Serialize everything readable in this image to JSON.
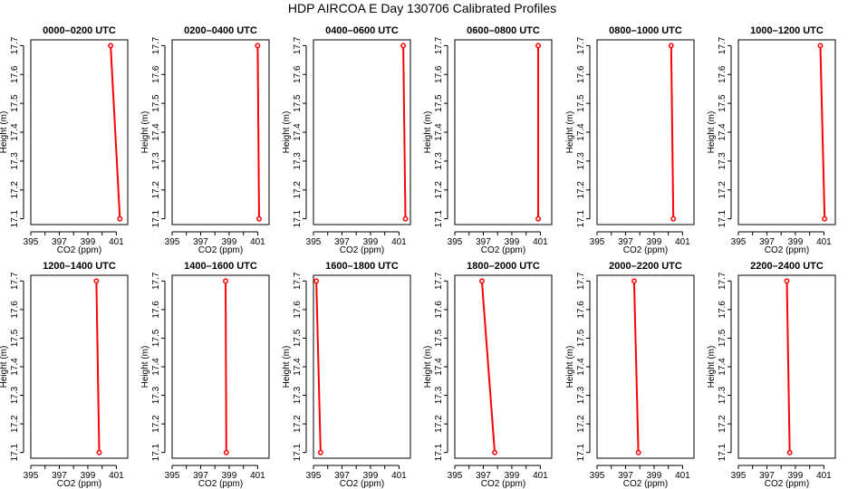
{
  "title": "HDP AIRCOA E  Day 130706  Calibrated Profiles",
  "colors": {
    "series": "#ff0000",
    "axis": "#000000",
    "background": "#ffffff"
  },
  "chart_data": [
    {
      "type": "line",
      "title": "0000–0200 UTC",
      "xlabel": "CO2 (ppm)",
      "ylabel": "Height (m)",
      "xlim": [
        395,
        401.8
      ],
      "ylim": [
        17.08,
        17.72
      ],
      "xticks": [
        395,
        397,
        399,
        401
      ],
      "yticks": [
        17.1,
        17.2,
        17.3,
        17.4,
        17.5,
        17.6,
        17.7
      ],
      "x": [
        400.6,
        401.25
      ],
      "y": [
        17.7,
        17.1
      ]
    },
    {
      "type": "line",
      "title": "0200–0400 UTC",
      "xlabel": "CO2 (ppm)",
      "ylabel": "Height (m)",
      "xlim": [
        395,
        401.8
      ],
      "ylim": [
        17.08,
        17.72
      ],
      "xticks": [
        395,
        397,
        399,
        401
      ],
      "yticks": [
        17.1,
        17.2,
        17.3,
        17.4,
        17.5,
        17.6,
        17.7
      ],
      "x": [
        401.0,
        401.1
      ],
      "y": [
        17.7,
        17.1
      ]
    },
    {
      "type": "line",
      "title": "0400–0600 UTC",
      "xlabel": "CO2 (ppm)",
      "ylabel": "Height (m)",
      "xlim": [
        395,
        401.8
      ],
      "ylim": [
        17.08,
        17.72
      ],
      "xticks": [
        395,
        397,
        399,
        401
      ],
      "yticks": [
        17.1,
        17.2,
        17.3,
        17.4,
        17.5,
        17.6,
        17.7
      ],
      "x": [
        401.3,
        401.45
      ],
      "y": [
        17.7,
        17.1
      ]
    },
    {
      "type": "line",
      "title": "0600–0800 UTC",
      "xlabel": "CO2 (ppm)",
      "ylabel": "Height (m)",
      "xlim": [
        395,
        401.8
      ],
      "ylim": [
        17.08,
        17.72
      ],
      "xticks": [
        395,
        397,
        399,
        401
      ],
      "yticks": [
        17.1,
        17.2,
        17.3,
        17.4,
        17.5,
        17.6,
        17.7
      ],
      "x": [
        400.85,
        400.85
      ],
      "y": [
        17.7,
        17.1
      ]
    },
    {
      "type": "line",
      "title": "0800–1000 UTC",
      "xlabel": "CO2 (ppm)",
      "ylabel": "Height (m)",
      "xlim": [
        395,
        401.8
      ],
      "ylim": [
        17.08,
        17.72
      ],
      "xticks": [
        395,
        397,
        399,
        401
      ],
      "yticks": [
        17.1,
        17.2,
        17.3,
        17.4,
        17.5,
        17.6,
        17.7
      ],
      "x": [
        400.2,
        400.35
      ],
      "y": [
        17.7,
        17.1
      ]
    },
    {
      "type": "line",
      "title": "1000–1200 UTC",
      "xlabel": "CO2 (ppm)",
      "ylabel": "Height (m)",
      "xlim": [
        395,
        401.8
      ],
      "ylim": [
        17.08,
        17.72
      ],
      "xticks": [
        395,
        397,
        399,
        401
      ],
      "yticks": [
        17.1,
        17.2,
        17.3,
        17.4,
        17.5,
        17.6,
        17.7
      ],
      "x": [
        400.75,
        401.05
      ],
      "y": [
        17.7,
        17.1
      ]
    },
    {
      "type": "line",
      "title": "1200–1400 UTC",
      "xlabel": "CO2 (ppm)",
      "ylabel": "Height (m)",
      "xlim": [
        395,
        401.8
      ],
      "ylim": [
        17.08,
        17.72
      ],
      "xticks": [
        395,
        397,
        399,
        401
      ],
      "yticks": [
        17.1,
        17.2,
        17.3,
        17.4,
        17.5,
        17.6,
        17.7
      ],
      "x": [
        399.6,
        399.8
      ],
      "y": [
        17.7,
        17.1
      ]
    },
    {
      "type": "line",
      "title": "1400–1600 UTC",
      "xlabel": "CO2 (ppm)",
      "ylabel": "Height (m)",
      "xlim": [
        395,
        401.8
      ],
      "ylim": [
        17.08,
        17.72
      ],
      "xticks": [
        395,
        397,
        399,
        401
      ],
      "yticks": [
        17.1,
        17.2,
        17.3,
        17.4,
        17.5,
        17.6,
        17.7
      ],
      "x": [
        398.75,
        398.8
      ],
      "y": [
        17.7,
        17.1
      ]
    },
    {
      "type": "line",
      "title": "1600–1800 UTC",
      "xlabel": "CO2 (ppm)",
      "ylabel": "Height (m)",
      "xlim": [
        395,
        401.8
      ],
      "ylim": [
        17.08,
        17.72
      ],
      "xticks": [
        395,
        397,
        399,
        401
      ],
      "yticks": [
        17.1,
        17.2,
        17.3,
        17.4,
        17.5,
        17.6,
        17.7
      ],
      "x": [
        395.2,
        395.5
      ],
      "y": [
        17.7,
        17.1
      ]
    },
    {
      "type": "line",
      "title": "1800–2000 UTC",
      "xlabel": "CO2 (ppm)",
      "ylabel": "Height (m)",
      "xlim": [
        395,
        401.8
      ],
      "ylim": [
        17.08,
        17.72
      ],
      "xticks": [
        395,
        397,
        399,
        401
      ],
      "yticks": [
        17.1,
        17.2,
        17.3,
        17.4,
        17.5,
        17.6,
        17.7
      ],
      "x": [
        396.9,
        397.8
      ],
      "y": [
        17.7,
        17.1
      ]
    },
    {
      "type": "line",
      "title": "2000–2200 UTC",
      "xlabel": "CO2 (ppm)",
      "ylabel": "Height (m)",
      "xlim": [
        395,
        401.8
      ],
      "ylim": [
        17.08,
        17.72
      ],
      "xticks": [
        395,
        397,
        399,
        401
      ],
      "yticks": [
        17.1,
        17.2,
        17.3,
        17.4,
        17.5,
        17.6,
        17.7
      ],
      "x": [
        397.6,
        397.9
      ],
      "y": [
        17.7,
        17.1
      ]
    },
    {
      "type": "line",
      "title": "2200–2400 UTC",
      "xlabel": "CO2 (ppm)",
      "ylabel": "Height (m)",
      "xlim": [
        395,
        401.8
      ],
      "ylim": [
        17.08,
        17.72
      ],
      "xticks": [
        395,
        397,
        399,
        401
      ],
      "yticks": [
        17.1,
        17.2,
        17.3,
        17.4,
        17.5,
        17.6,
        17.7
      ],
      "x": [
        398.4,
        398.6
      ],
      "y": [
        17.7,
        17.1
      ]
    }
  ]
}
